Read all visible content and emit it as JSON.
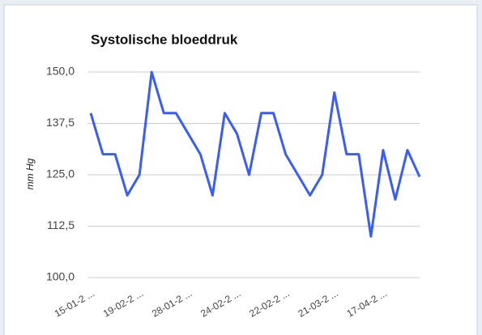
{
  "chart_data": {
    "type": "line",
    "title": "Systolische bloeddruk",
    "y_label": "mm Hg",
    "categories": [
      "15-01-2 ...",
      null,
      null,
      null,
      "19-02-2 ...",
      null,
      null,
      null,
      "28-01-2 ...",
      null,
      null,
      null,
      "24-02-2 ...",
      null,
      null,
      null,
      "22-02-2 ...",
      null,
      null,
      null,
      "21-03-2 ...",
      null,
      null,
      null,
      "17-04-2 ...",
      null,
      null,
      null
    ],
    "series": [
      {
        "name": "Systolische bloeddruk",
        "color": "#3a5ef5",
        "values": [
          140,
          130,
          130,
          120,
          125,
          150,
          140,
          140,
          135,
          130,
          120,
          140,
          135,
          125,
          140,
          140,
          130,
          125,
          120,
          125,
          145,
          130,
          130,
          110,
          131,
          119,
          131,
          124.5
        ]
      }
    ],
    "ylim": [
      100,
      150
    ],
    "yticks": [
      {
        "value": 100,
        "label": "100,0"
      },
      {
        "value": 112.5,
        "label": "112,5"
      },
      {
        "value": 125,
        "label": "125,0"
      },
      {
        "value": 137.5,
        "label": "137,5"
      },
      {
        "value": 150,
        "label": "150,0"
      }
    ],
    "grid": true
  }
}
